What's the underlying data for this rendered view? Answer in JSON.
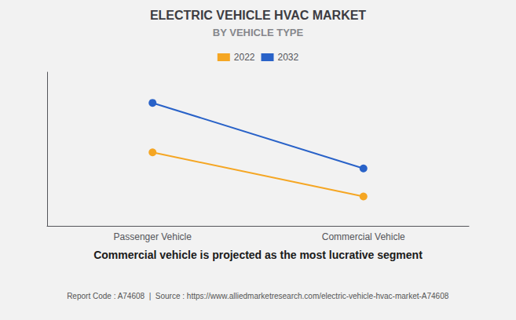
{
  "chart_data": {
    "type": "line",
    "title": "ELECTRIC VEHICLE HVAC MARKET",
    "subtitle": "BY VEHICLE TYPE",
    "annotations": [
      "Commercial vehicle is projected as the most lucrative segment",
      "Report Code : A74608  |  Source : https://www.alliedmarketresearch.com/electric-vehicle-hvac-market-A74608"
    ],
    "categories": [
      "Passenger Vehicle",
      "Commercial Vehicle"
    ],
    "series": [
      {
        "name": "2022",
        "color": "#F5A623",
        "values": [
          0.55,
          0.22
        ]
      },
      {
        "name": "2032",
        "color": "#2962C8",
        "values": [
          0.92,
          0.43
        ]
      }
    ],
    "ylim": [
      0.0,
      1.15
    ],
    "yticks": [],
    "grid": false,
    "legend": "top",
    "tick_labels": "x",
    "marker": "circle"
  }
}
